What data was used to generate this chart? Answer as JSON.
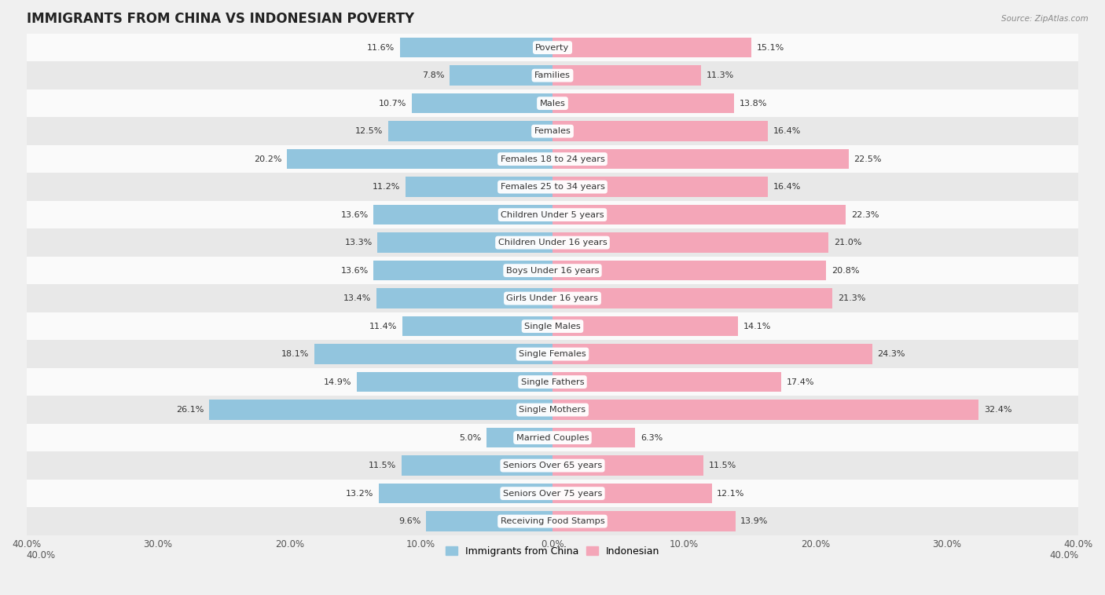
{
  "title": "IMMIGRANTS FROM CHINA VS INDONESIAN POVERTY",
  "source": "Source: ZipAtlas.com",
  "categories": [
    "Poverty",
    "Families",
    "Males",
    "Females",
    "Females 18 to 24 years",
    "Females 25 to 34 years",
    "Children Under 5 years",
    "Children Under 16 years",
    "Boys Under 16 years",
    "Girls Under 16 years",
    "Single Males",
    "Single Females",
    "Single Fathers",
    "Single Mothers",
    "Married Couples",
    "Seniors Over 65 years",
    "Seniors Over 75 years",
    "Receiving Food Stamps"
  ],
  "china_values": [
    11.6,
    7.8,
    10.7,
    12.5,
    20.2,
    11.2,
    13.6,
    13.3,
    13.6,
    13.4,
    11.4,
    18.1,
    14.9,
    26.1,
    5.0,
    11.5,
    13.2,
    9.6
  ],
  "indonesian_values": [
    15.1,
    11.3,
    13.8,
    16.4,
    22.5,
    16.4,
    22.3,
    21.0,
    20.8,
    21.3,
    14.1,
    24.3,
    17.4,
    32.4,
    6.3,
    11.5,
    12.1,
    13.9
  ],
  "china_color": "#92c5de",
  "indonesian_color": "#f4a6b8",
  "china_label": "Immigrants from China",
  "indonesian_label": "Indonesian",
  "xlim": 40.0,
  "background_color": "#f0f0f0",
  "row_colors": [
    "#fafafa",
    "#e8e8e8"
  ],
  "bar_height": 0.72,
  "title_fontsize": 12,
  "label_fontsize": 8.2,
  "value_fontsize": 8.0,
  "legend_fontsize": 9,
  "tick_fontsize": 8.5
}
